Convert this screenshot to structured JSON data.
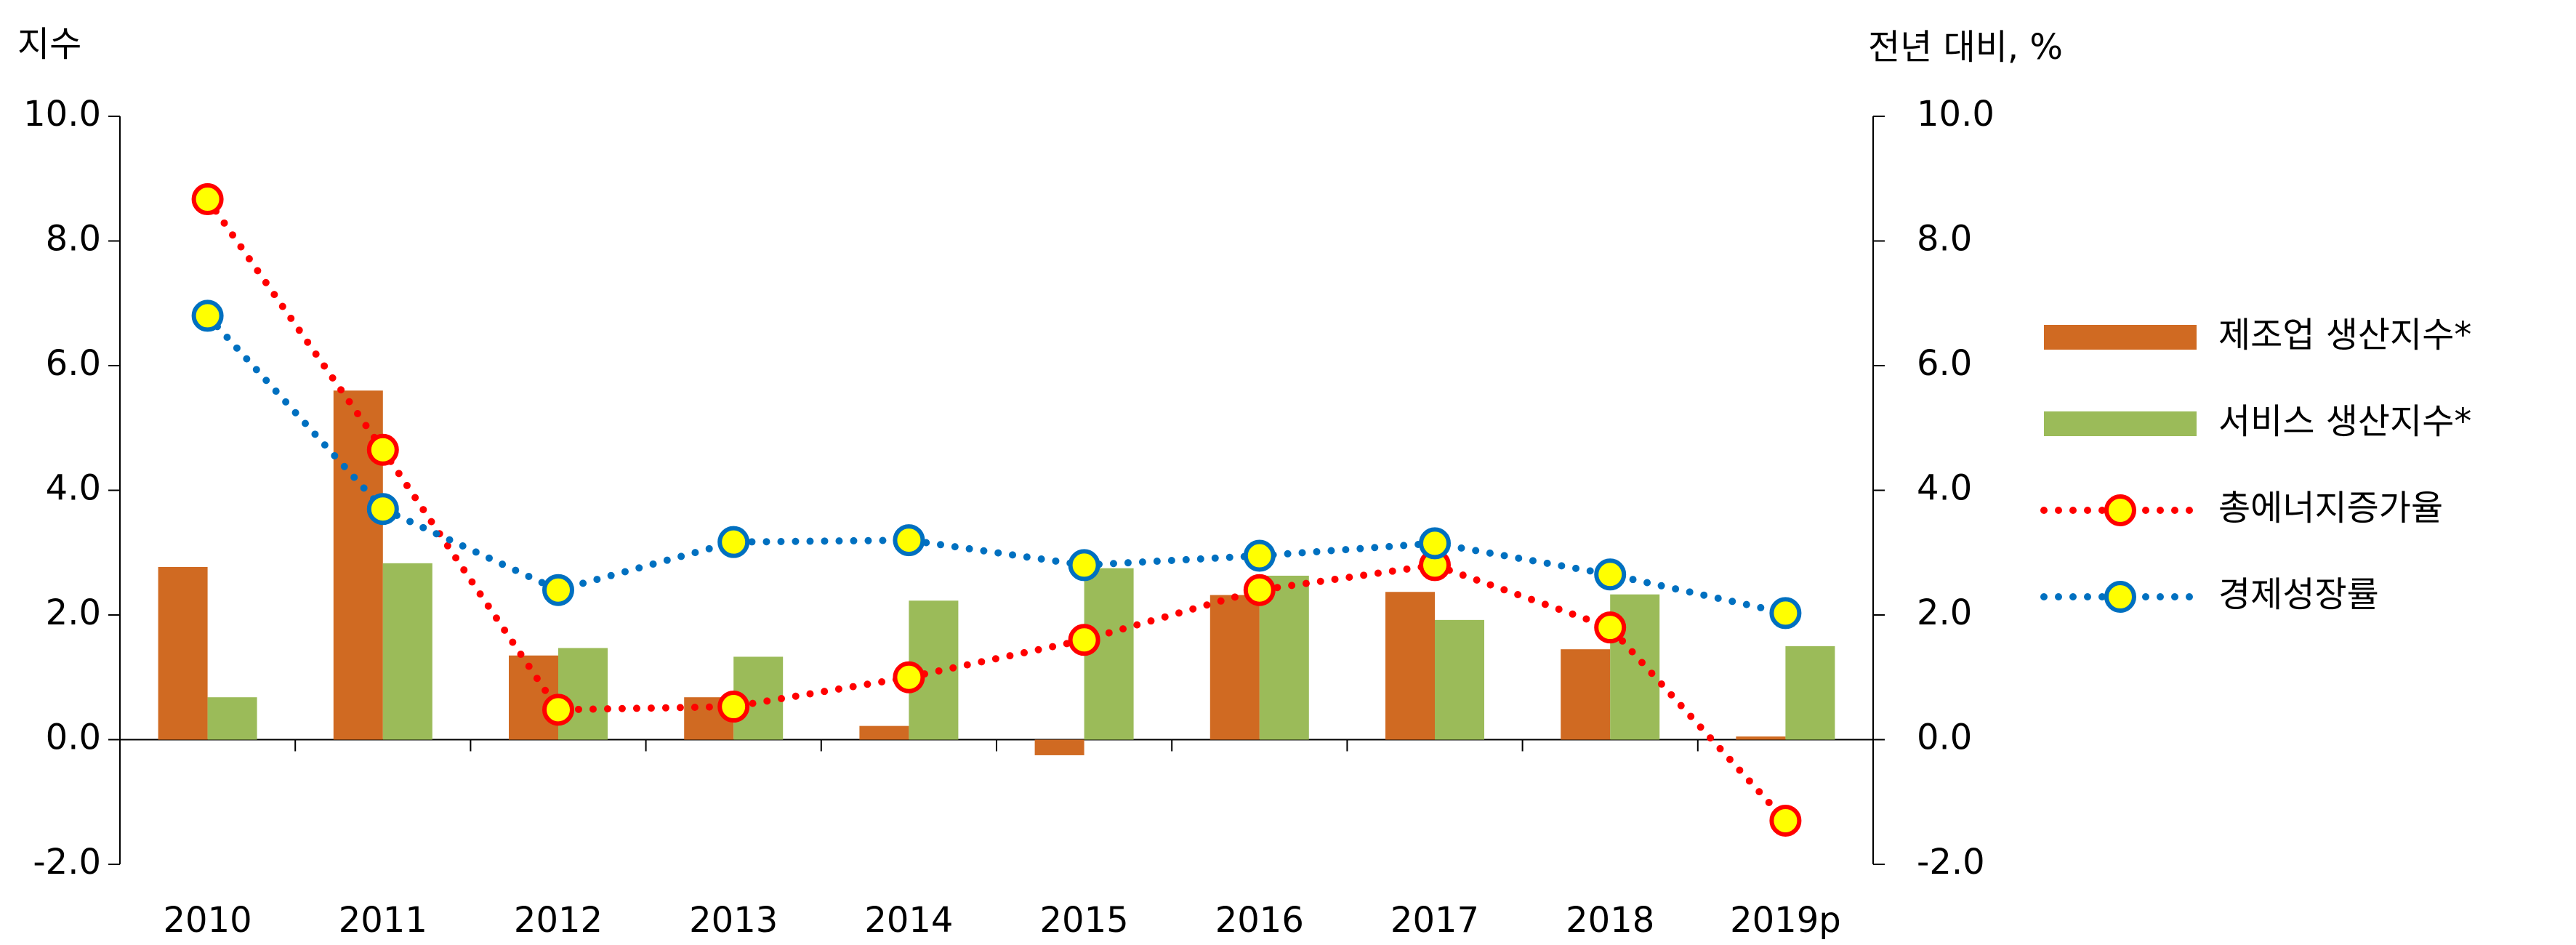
{
  "chart_data": {
    "type": "bar_line",
    "y_label": "지수",
    "y2_label": "전년 대비, %",
    "categories": [
      "2010",
      "2011",
      "2012",
      "2013",
      "2014",
      "2015",
      "2016",
      "2017",
      "2018",
      "2019p"
    ],
    "series": [
      {
        "name": "제조업 생산지수*",
        "type": "bar",
        "color": "#d06a22",
        "values": [
          2.77,
          5.6,
          1.35,
          0.68,
          0.22,
          -0.25,
          2.32,
          2.37,
          1.45,
          0.05
        ]
      },
      {
        "name": "서비스 생산지수*",
        "type": "bar",
        "color": "#9bbb59",
        "values": [
          0.68,
          2.83,
          1.47,
          1.33,
          2.23,
          2.75,
          2.63,
          1.92,
          2.33,
          1.5
        ]
      },
      {
        "name": "총에너지증가율",
        "type": "line",
        "axis": "y2",
        "color": "#ff0000",
        "values": [
          8.67,
          4.65,
          0.48,
          0.53,
          1.0,
          1.6,
          2.4,
          2.8,
          1.8,
          -1.3
        ]
      },
      {
        "name": "경제성장률",
        "type": "line",
        "axis": "y2",
        "color": "#0070c0",
        "values": [
          6.8,
          3.7,
          2.4,
          3.17,
          3.2,
          2.8,
          2.95,
          3.15,
          2.65,
          2.03
        ]
      }
    ],
    "marker_fill": "#ffff00",
    "ylim": [
      -2,
      10
    ],
    "yticks": [
      {
        "value": -2,
        "label": "-2.0"
      },
      {
        "value": 0,
        "label": "0.0"
      },
      {
        "value": 2,
        "label": "2.0"
      },
      {
        "value": 4,
        "label": "4.0"
      },
      {
        "value": 6,
        "label": "6.0"
      },
      {
        "value": 8,
        "label": "8.0"
      },
      {
        "value": 10,
        "label": "10.0"
      }
    ],
    "y2lim": [
      -2,
      10
    ],
    "y2ticks": [
      {
        "value": -2,
        "label": "-2.0"
      },
      {
        "value": 0,
        "label": "0.0"
      },
      {
        "value": 2,
        "label": "2.0"
      },
      {
        "value": 4,
        "label": "4.0"
      },
      {
        "value": 6,
        "label": "6.0"
      },
      {
        "value": 8,
        "label": "8.0"
      },
      {
        "value": 10,
        "label": "10.0"
      }
    ],
    "legend": "right"
  }
}
